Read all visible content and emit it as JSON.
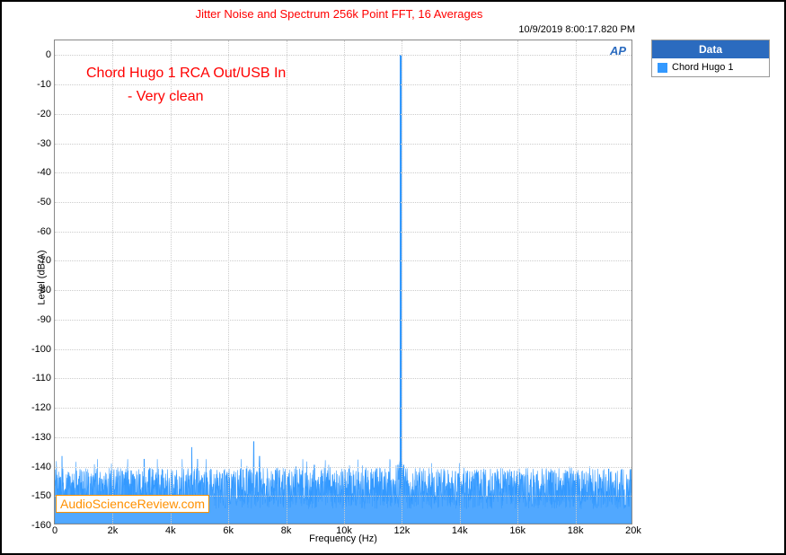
{
  "chart": {
    "type": "line-spectrum",
    "title": "Jitter Noise and Spectrum 256k Point FFT, 16 Averages",
    "title_color": "#ff0000",
    "timestamp": "10/9/2019 8:00:17.820 PM",
    "xlabel": "Frequency (Hz)",
    "ylabel": "Level (dBrA)",
    "xlim": [
      0,
      20000
    ],
    "ylim": [
      -160,
      5
    ],
    "x_ticks": [
      0,
      2000,
      4000,
      6000,
      8000,
      10000,
      12000,
      14000,
      16000,
      18000,
      20000
    ],
    "x_tick_labels": [
      "0",
      "2k",
      "4k",
      "6k",
      "8k",
      "10k",
      "12k",
      "14k",
      "16k",
      "18k",
      "20k"
    ],
    "y_ticks": [
      0,
      -10,
      -20,
      -30,
      -40,
      -50,
      -60,
      -70,
      -80,
      -90,
      -100,
      -110,
      -120,
      -130,
      -140,
      -150,
      -160
    ],
    "y_tick_labels": [
      "0",
      "-10",
      "-20",
      "-30",
      "-40",
      "-50",
      "-60",
      "-70",
      "-80",
      "-90",
      "-100",
      "-110",
      "-120",
      "-130",
      "-140",
      "-150",
      "-160"
    ],
    "grid_color": "#cccccc",
    "background_color": "#ffffff",
    "series_color": "#3399ff",
    "series_name": "Chord Hugo 1",
    "noise_floor_mean": -148,
    "noise_floor_range": 10,
    "noise_peak_upper": -140,
    "noise_floor_lower": -160,
    "main_peak": {
      "freq": 12000,
      "level": 0
    },
    "spurs": [
      {
        "freq": 250,
        "level": -137
      },
      {
        "freq": 3100,
        "level": -138
      },
      {
        "freq": 4750,
        "level": -134
      },
      {
        "freq": 4950,
        "level": -138
      },
      {
        "freq": 6900,
        "level": -132
      },
      {
        "freq": 7100,
        "level": -137
      },
      {
        "freq": 9000,
        "level": -140
      },
      {
        "freq": 11900,
        "level": -140
      },
      {
        "freq": 12100,
        "level": -140
      }
    ],
    "legend_header": "Data",
    "legend_header_bg": "#2b6bbf",
    "annotation_line1": "Chord Hugo 1 RCA Out/USB In",
    "annotation_line2": "- Very clean",
    "annotation_color": "#ff0000",
    "watermark": "AudioScienceReview.com",
    "watermark_color": "#ff9000",
    "ap_logo": "AP",
    "ap_logo_color": "#2b6bbf"
  }
}
